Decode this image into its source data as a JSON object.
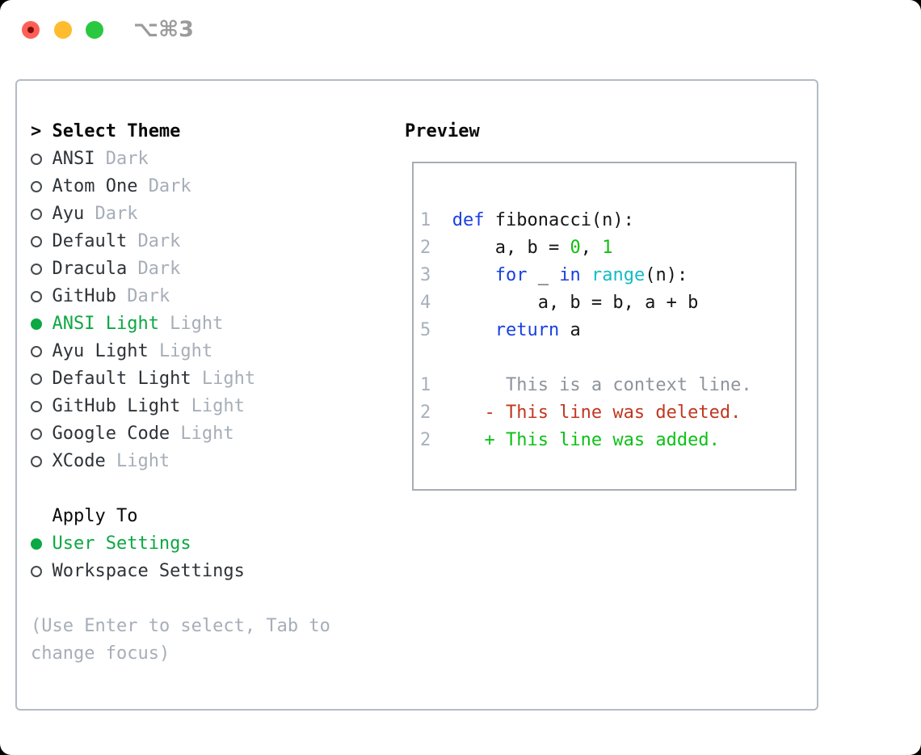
{
  "window": {
    "shortcut": "⌥⌘3"
  },
  "colors": {
    "green-accent": "#0ca843",
    "tag-gray": "#a6aeb8",
    "text-dark": "#2e3338",
    "black": "#0a0a0a",
    "border-panel": "#b4bbc4",
    "border-box": "#a6adb6",
    "ln-gray": "#a7b0bc",
    "ring": "#464b50",
    "shortcut-gray": "#9b9b9b",
    "traffic-red": "#ff5f57",
    "traffic-red-dot": "#7e0d04",
    "traffic-yellow": "#febc2e",
    "traffic-green": "#2ac840"
  },
  "theme_picker": {
    "prompt": ">",
    "header": "Select Theme",
    "themes": [
      {
        "name": "ANSI",
        "tag": "Dark",
        "selected": false
      },
      {
        "name": "Atom One",
        "tag": "Dark",
        "selected": false
      },
      {
        "name": "Ayu",
        "tag": "Dark",
        "selected": false
      },
      {
        "name": "Default",
        "tag": "Dark",
        "selected": false
      },
      {
        "name": "Dracula",
        "tag": "Dark",
        "selected": false
      },
      {
        "name": "GitHub",
        "tag": "Dark",
        "selected": false
      },
      {
        "name": "ANSI Light",
        "tag": "Light",
        "selected": true
      },
      {
        "name": "Ayu Light",
        "tag": "Light",
        "selected": false
      },
      {
        "name": "Default Light",
        "tag": "Light",
        "selected": false
      },
      {
        "name": "GitHub Light",
        "tag": "Light",
        "selected": false
      },
      {
        "name": "Google Code",
        "tag": "Light",
        "selected": false
      },
      {
        "name": "XCode",
        "tag": "Light",
        "selected": false
      }
    ],
    "apply_to": {
      "header": "Apply To",
      "options": [
        {
          "label": "User Settings",
          "selected": true
        },
        {
          "label": "Workspace Settings",
          "selected": false
        }
      ]
    },
    "hint": "(Use Enter to select, Tab to change focus)"
  },
  "preview": {
    "header": "Preview",
    "colors": {
      "kw": "#1a3fe0",
      "fn": "#13bcc2",
      "num": "#10bf10",
      "fg": "#161616",
      "ctx": "#8d949c",
      "del": "#c23720",
      "add": "#0cc117"
    },
    "lines": [
      {
        "num": "1",
        "tokens": [
          {
            "t": "def",
            "c": "kw"
          },
          {
            "t": " fibonacci(n):",
            "c": "fg"
          }
        ]
      },
      {
        "num": "2",
        "tokens": [
          {
            "t": "    a, b = ",
            "c": "fg"
          },
          {
            "t": "0",
            "c": "num"
          },
          {
            "t": ", ",
            "c": "fg"
          },
          {
            "t": "1",
            "c": "num"
          }
        ]
      },
      {
        "num": "3",
        "tokens": [
          {
            "t": "    ",
            "c": "fg"
          },
          {
            "t": "for",
            "c": "kw"
          },
          {
            "t": " _ ",
            "c": "fg"
          },
          {
            "t": "in",
            "c": "kw"
          },
          {
            "t": " ",
            "c": "fg"
          },
          {
            "t": "range",
            "c": "fn"
          },
          {
            "t": "(n):",
            "c": "fg"
          }
        ]
      },
      {
        "num": "4",
        "tokens": [
          {
            "t": "        a, b = b, a + b",
            "c": "fg"
          }
        ]
      },
      {
        "num": "5",
        "tokens": [
          {
            "t": "    ",
            "c": "fg"
          },
          {
            "t": "return",
            "c": "kw"
          },
          {
            "t": " a",
            "c": "fg"
          }
        ]
      },
      {
        "num": "",
        "tokens": []
      },
      {
        "num": "1",
        "tokens": [
          {
            "t": "     This is a context line.",
            "c": "ctx"
          }
        ]
      },
      {
        "num": "2",
        "tokens": [
          {
            "t": "   - This line was deleted.",
            "c": "del"
          }
        ]
      },
      {
        "num": "2",
        "tokens": [
          {
            "t": "   + This line was added.",
            "c": "add"
          }
        ]
      }
    ]
  }
}
